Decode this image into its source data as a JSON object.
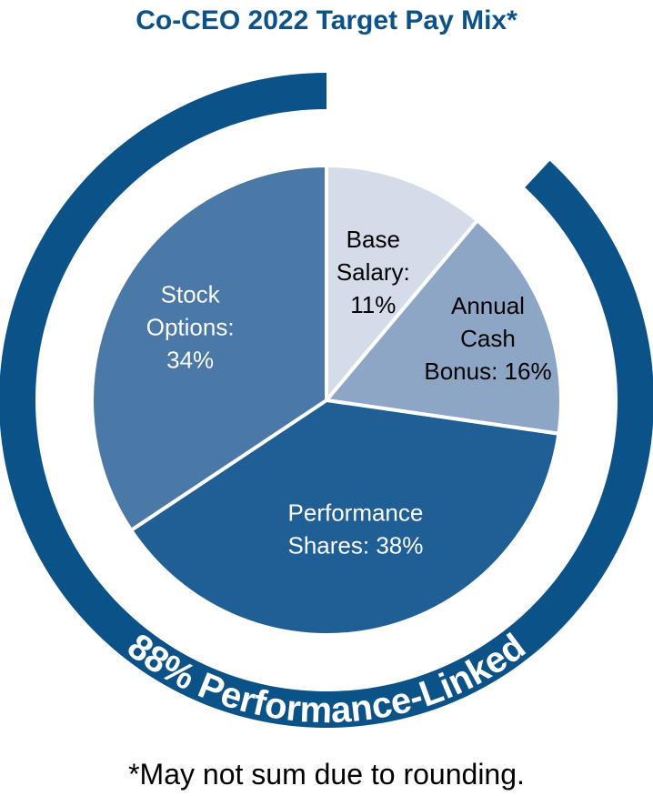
{
  "chart_data": {
    "type": "pie",
    "title": "Co-CEO 2022 Target Pay Mix*",
    "slices": [
      {
        "label_lines": [
          "Base",
          "Salary:",
          "11%"
        ],
        "category": "Base Salary",
        "value": 11,
        "color": "#d4dcea",
        "text_color": "#000000"
      },
      {
        "label_lines": [
          "Annual",
          "Cash",
          "Bonus: 16%"
        ],
        "category": "Annual Cash Bonus",
        "value": 16,
        "color": "#8da6c6",
        "text_color": "#000000"
      },
      {
        "label_lines": [
          "Performance",
          "Shares: 38%"
        ],
        "category": "Performance Shares",
        "value": 38,
        "color": "#1f5f95",
        "text_color": "#ffffff"
      },
      {
        "label_lines": [
          "Stock",
          "Options:",
          "34%"
        ],
        "category": "Stock Options",
        "value": 34,
        "color": "#4a78a7",
        "text_color": "#ffffff"
      }
    ],
    "ring": {
      "label": "88% Performance-Linked",
      "value": 88,
      "color": "#0b5289"
    },
    "footnote": "*May not sum due to rounding."
  }
}
